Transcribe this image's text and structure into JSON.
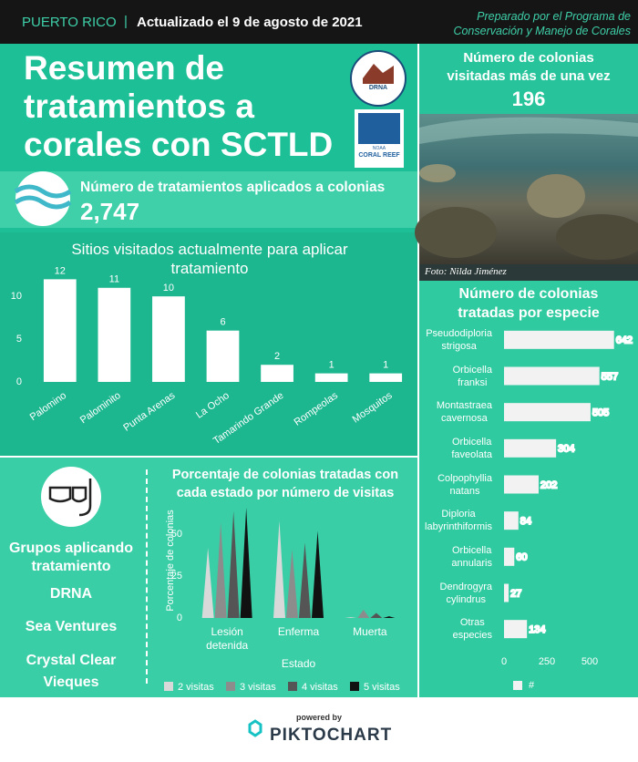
{
  "header": {
    "region": "PUERTO RICO",
    "separator": "|",
    "updated": "Actualizado el 9 de agosto de 2021",
    "prepared": "Preparado por el Programa de Conservación y Manejo de Corales"
  },
  "title": "Resumen de tratamientos a corales con SCTLD",
  "logos": {
    "drna": "DRNA",
    "noaa": "NOAA",
    "coral_reef": "CORAL REEF"
  },
  "treatments": {
    "label": "Número de tratamientos aplicados a colonias",
    "value": "2,747"
  },
  "revisited": {
    "label": "Número de colonias visitadas más de una vez",
    "value": 196
  },
  "photo_credit": "Foto: Nilda Jiménez",
  "groups": {
    "title": "Grupos aplicando tratamiento",
    "items": [
      "DRNA",
      "Sea Ventures",
      "Crystal Clear Vieques"
    ]
  },
  "footer": {
    "powered": "powered by",
    "brand": "PIKTOCHART"
  },
  "chart_data": [
    {
      "type": "bar",
      "title": "Sitios visitados actualmente para aplicar tratamiento",
      "categories": [
        "Palomino",
        "Palominito",
        "Punta Arenas",
        "La Ocho",
        "Tamarindo Grande",
        "Rompeolas",
        "Mosquitos"
      ],
      "values": [
        12,
        11,
        10,
        6,
        2,
        1,
        1
      ],
      "color": "#ffffff",
      "ylim": [
        0,
        13
      ],
      "yticks": [
        0,
        5,
        10
      ],
      "value_labels_shown": true
    },
    {
      "type": "bar",
      "orientation": "horizontal",
      "title": "Número de colonias tratadas por especie",
      "categories": [
        "Pseudodiploria strigosa",
        "Orbicella franksi",
        "Montastraea cavernosa",
        "Orbicella faveolata",
        "Colpophyllia natans",
        "Diploria labyrinthiformis",
        "Orbicella annularis",
        "Dendrogyra cylindrus",
        "Otras especies"
      ],
      "series": [
        {
          "name": "#",
          "color": "#f2f2f2",
          "values": [
            642,
            557,
            505,
            304,
            202,
            84,
            60,
            27,
            134
          ]
        }
      ],
      "xlim": [
        0,
        700
      ],
      "xticks": [
        0,
        250,
        500
      ],
      "value_labels_shown": true
    },
    {
      "type": "bar",
      "mark_shape": "triangle",
      "title": "Porcentaje de colonias tratadas con cada estado por número de visitas",
      "x_label": "Estado",
      "y_label": "Porcentaje de colonias",
      "categories": [
        "Lesión detenida",
        "Enferma",
        "Muerta"
      ],
      "series": [
        {
          "name": "2 visitas",
          "color": "#d9d9d9",
          "values": [
            42,
            58,
            0.5
          ]
        },
        {
          "name": "3 visitas",
          "color": "#8c8c8c",
          "values": [
            57,
            41,
            5
          ]
        },
        {
          "name": "4 visitas",
          "color": "#555555",
          "values": [
            64,
            45,
            3
          ]
        },
        {
          "name": "5 visitas",
          "color": "#111111",
          "values": [
            66,
            52,
            1
          ]
        }
      ],
      "ylim": [
        0,
        67
      ],
      "yticks": [
        0,
        25,
        50
      ]
    }
  ]
}
